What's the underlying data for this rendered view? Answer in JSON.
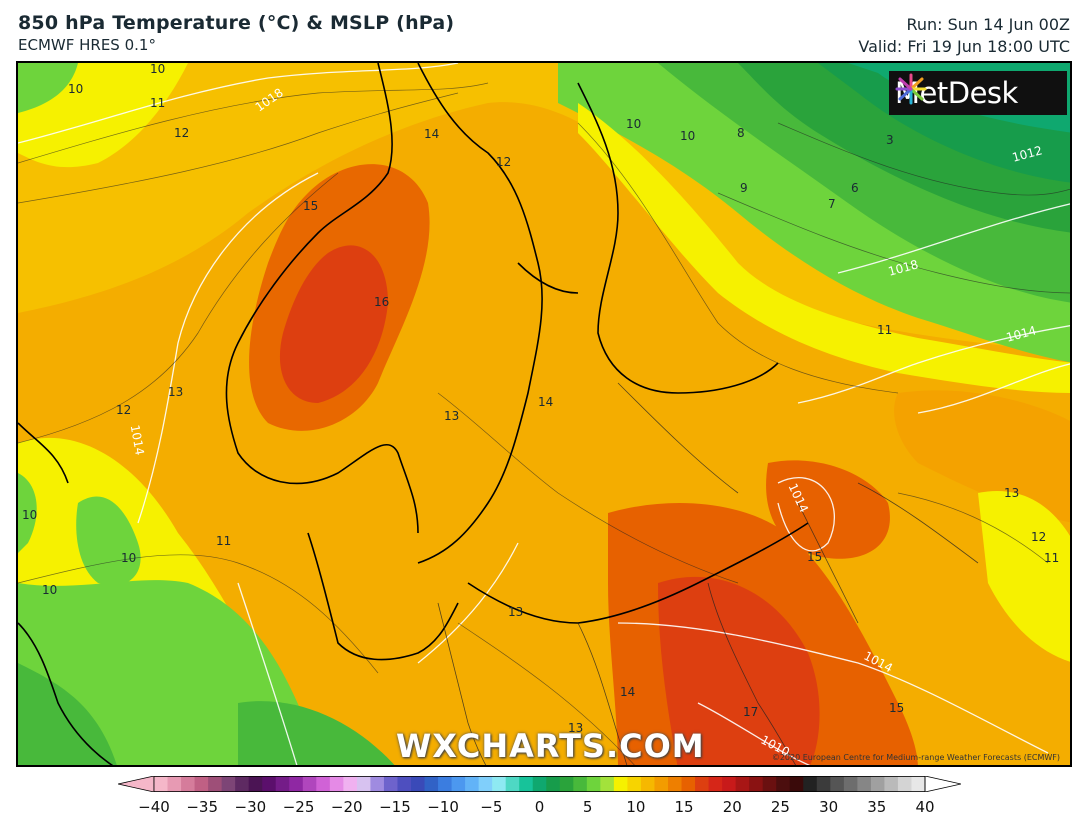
{
  "header": {
    "title": "850 hPa Temperature (°C) & MSLP (hPa)",
    "model": "ECMWF HRES 0.1°",
    "run": "Run: Sun 14 Jun 00Z",
    "valid": "Valid: Fri 19 Jun 18:00 UTC"
  },
  "logo": {
    "text": "MetDesk",
    "icon": "metdesk-burst-icon"
  },
  "watermark": "WXCHARTS.COM",
  "credit": "©2020 European Centre for Medium-range Weather Forecasts (ECMWF)",
  "temperature_labels": [
    "10",
    "10",
    "11",
    "12",
    "14",
    "12",
    "15",
    "16",
    "13",
    "12",
    "13",
    "14",
    "10",
    "10",
    "11",
    "10",
    "13",
    "14",
    "13",
    "17",
    "15",
    "15",
    "13",
    "12",
    "11",
    "11",
    "10",
    "8",
    "3",
    "6",
    "7",
    "9",
    "10"
  ],
  "pressure_labels": [
    "1018",
    "1012",
    "1018",
    "1014",
    "1014",
    "1014",
    "1014",
    "1010"
  ],
  "colorbar": {
    "ticks": [
      "−40",
      "−35",
      "−30",
      "−25",
      "−20",
      "−15",
      "−10",
      "−5",
      "0",
      "5",
      "10",
      "15",
      "20",
      "25",
      "30",
      "35",
      "40"
    ],
    "colors": [
      "#f5b7c9",
      "#e79ab3",
      "#d57c9b",
      "#c06084",
      "#9e4f78",
      "#7d4576",
      "#5e2a62",
      "#4b1454",
      "#5b0f6c",
      "#741c88",
      "#8f28a3",
      "#b046bd",
      "#d062d6",
      "#e58ae6",
      "#f0b1f0",
      "#d7c2f0",
      "#9f8be0",
      "#6e63cc",
      "#4e4fbf",
      "#3a4ab8",
      "#3162c6",
      "#3b7de0",
      "#4c98ef",
      "#62b3f7",
      "#80cffb",
      "#8ee9f2",
      "#4ed8c4",
      "#17c39a",
      "#0fa86f",
      "#179c4b",
      "#2aa33b",
      "#48b93b",
      "#6ed43c",
      "#a3e23b",
      "#f6f100",
      "#f7d400",
      "#f6b800",
      "#f39c00",
      "#ee7f00",
      "#e76100",
      "#dd3f10",
      "#d62618",
      "#c81a1a",
      "#a81615",
      "#8a1212",
      "#6a1010",
      "#4c0e0e",
      "#3a0a0a",
      "#222222",
      "#3b3b3b",
      "#555555",
      "#6d6d6d",
      "#868686",
      "#a0a0a0",
      "#bababa",
      "#d4d4d4",
      "#e7e7e7"
    ]
  }
}
